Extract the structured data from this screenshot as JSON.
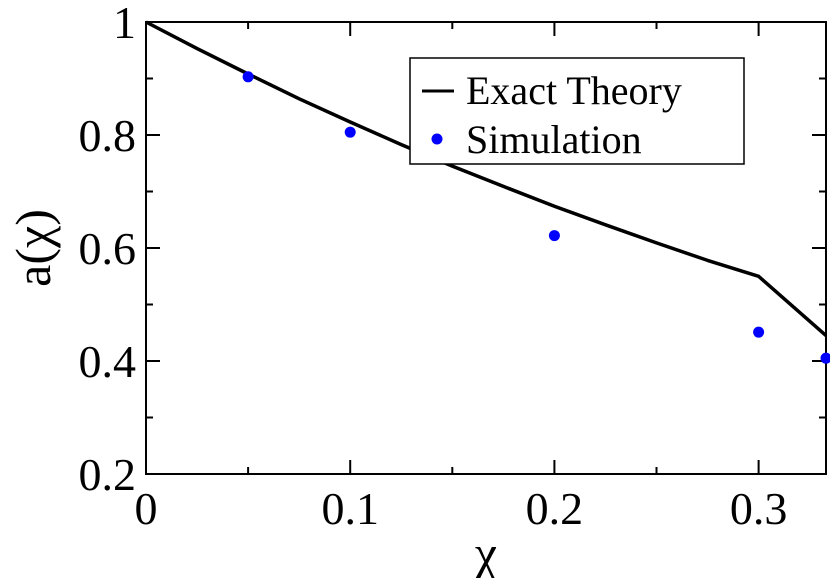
{
  "chart_data": {
    "type": "line",
    "title": "",
    "xlabel": "χ",
    "ylabel": "a(χ)",
    "xlim": [
      0,
      0.333
    ],
    "ylim": [
      0.2,
      1.0
    ],
    "x_ticks": [
      0,
      0.1,
      0.2,
      0.3
    ],
    "x_tick_labels": [
      "0",
      "0.1",
      "0.2",
      "0.3"
    ],
    "y_ticks": [
      0.2,
      0.4,
      0.6,
      0.8,
      1.0
    ],
    "y_tick_labels": [
      "0.2",
      "0.4",
      "0.6",
      "0.8",
      "1"
    ],
    "grid": false,
    "legend_position": "top-right",
    "series": [
      {
        "name": "Exact Theory",
        "kind": "line",
        "color": "#000000",
        "x": [
          0,
          0.025,
          0.05,
          0.075,
          0.1,
          0.125,
          0.15,
          0.175,
          0.2,
          0.225,
          0.25,
          0.275,
          0.3,
          0.333
        ],
        "y": [
          1.0,
          0.953,
          0.908,
          0.864,
          0.823,
          0.783,
          0.745,
          0.709,
          0.674,
          0.641,
          0.609,
          0.578,
          0.55,
          0.445
        ]
      },
      {
        "name": "Simulation",
        "kind": "scatter",
        "color": "#0000ff",
        "x": [
          0.05,
          0.1,
          0.2,
          0.3,
          0.333
        ],
        "y": [
          0.903,
          0.805,
          0.622,
          0.451,
          0.405
        ]
      }
    ]
  }
}
